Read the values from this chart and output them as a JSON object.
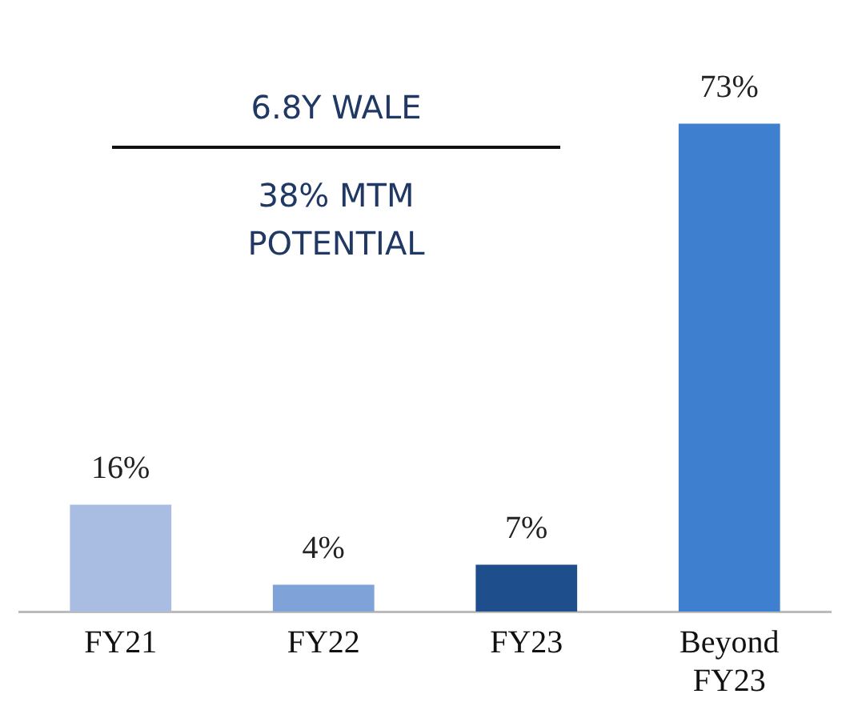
{
  "chart_data": {
    "type": "bar",
    "categories": [
      "FY21",
      "FY22",
      "FY23",
      "Beyond FY23"
    ],
    "values": [
      16,
      4,
      7,
      73
    ],
    "colors": [
      "#a9bde3",
      "#7fa3d9",
      "#1f4e8c",
      "#3f7fcf"
    ],
    "value_labels": [
      "16%",
      "4%",
      "7%",
      "73%"
    ],
    "grid": false,
    "legend": false,
    "annotations": [
      "6.8Y WALE",
      "38% MTM POTENTIAL"
    ]
  }
}
